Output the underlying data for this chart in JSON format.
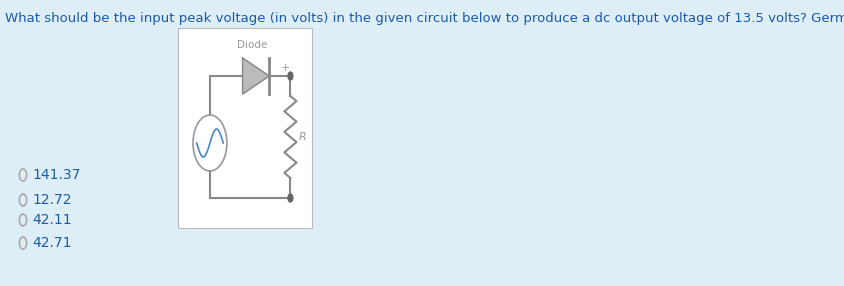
{
  "background_color": "#ddeef6",
  "title_text": "What should be the input peak voltage (in volts) in the given circuit below to produce a dc output voltage of 13.5 volts? Germanium diode is used.",
  "title_fontsize": 9.5,
  "title_color": "#1a5aaa",
  "options": [
    "141.37",
    "12.72",
    "42.11",
    "42.71"
  ],
  "option_fontsize": 10,
  "option_color": "#1a5aaa",
  "circuit_bg": "#ffffff",
  "circuit_border": "#bbbbbb",
  "wire_color": "#888888",
  "diode_fill": "#bbbbbb",
  "resistor_color": "#888888",
  "src_sine_color": "#4488cc",
  "dot_color": "#666666",
  "label_color": "#999999"
}
